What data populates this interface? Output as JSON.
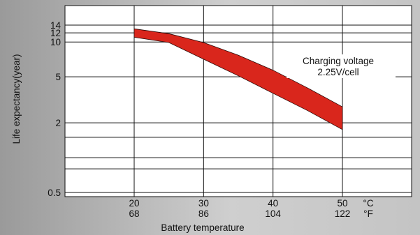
{
  "chart_data": {
    "type": "area",
    "title": "",
    "xlabel": "Battery temperature",
    "ylabel": "Life expectancy(year)",
    "x_unit_primary": "°C",
    "x_unit_secondary": "°F",
    "x_ticks": [
      {
        "c": "20",
        "f": "68"
      },
      {
        "c": "30",
        "f": "86"
      },
      {
        "c": "40",
        "f": "104"
      },
      {
        "c": "50",
        "f": "122"
      }
    ],
    "y_ticks": [
      {
        "value": 14,
        "label": "14"
      },
      {
        "value": 12,
        "label": "12"
      },
      {
        "value": 10,
        "label": "10"
      },
      {
        "value": 5,
        "label": "5"
      },
      {
        "value": 2,
        "label": "2"
      },
      {
        "value": 0.5,
        "label": "0.5"
      }
    ],
    "y_scale": "log",
    "grid": true,
    "annotation": {
      "line1": "Charging voltage",
      "line2": "2.25V/cell"
    },
    "band_color": "#d9261c",
    "series": [
      {
        "name": "upper",
        "x": [
          20,
          25,
          30,
          35,
          40,
          45,
          50
        ],
        "y": [
          13.0,
          11.8,
          9.9,
          7.7,
          5.7,
          4.0,
          2.75
        ]
      },
      {
        "name": "lower",
        "x": [
          20,
          25,
          30,
          35,
          40,
          45,
          50
        ],
        "y": [
          11.0,
          9.9,
          7.1,
          5.1,
          3.6,
          2.55,
          1.75
        ]
      }
    ]
  }
}
